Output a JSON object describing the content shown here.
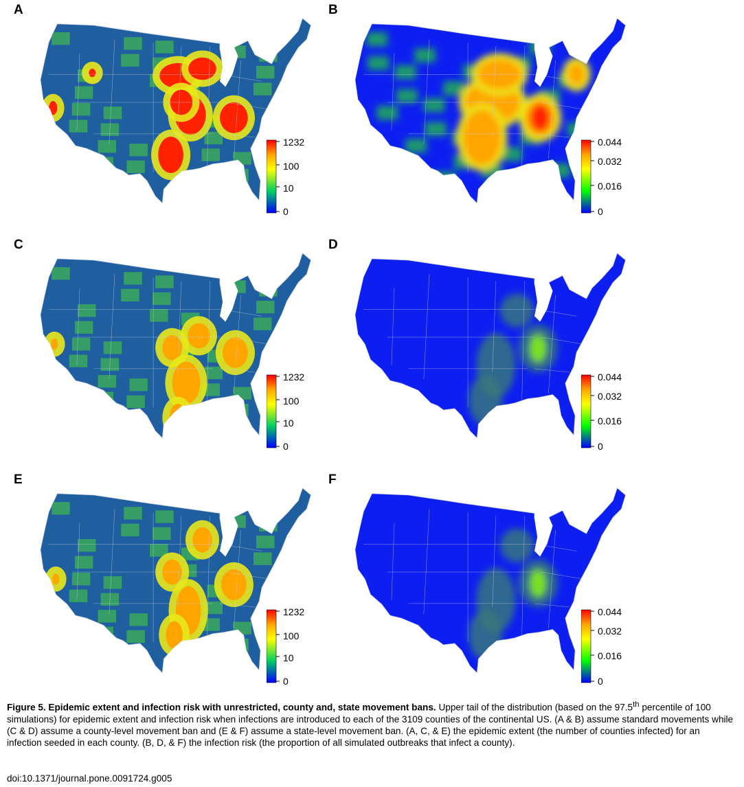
{
  "panels": [
    {
      "label": "A",
      "type": "extent",
      "tint": "unrestricted"
    },
    {
      "label": "B",
      "type": "risk",
      "tint": "unrestricted"
    },
    {
      "label": "C",
      "type": "extent",
      "tint": "county"
    },
    {
      "label": "D",
      "type": "risk",
      "tint": "county"
    },
    {
      "label": "E",
      "type": "extent",
      "tint": "state"
    },
    {
      "label": "F",
      "type": "risk",
      "tint": "state"
    }
  ],
  "extent_scale": {
    "ticks": [
      "1232",
      "100",
      "10",
      "0"
    ]
  },
  "risk_scale": {
    "ticks": [
      "0.044",
      "0.032",
      "0.016",
      "0"
    ]
  },
  "colors": {
    "map_blue": "#1f5fa0",
    "map_green": "#3aa85a",
    "hot_red": "#ff2200",
    "hot_orange": "#ffa500",
    "hot_yellow": "#e8e81a",
    "risk_blue": "#0d1ff0"
  },
  "caption": {
    "title": "Figure 5. Epidemic extent and infection risk with unrestricted, county and, state movement bans.",
    "text_before_sup": " Upper tail of the distribution (based on the 97.5",
    "sup": "th",
    "text_after_sup": " percentile of 100 simulations) for epidemic extent and infection risk when infections are introduced to each of the 3109 counties of the continental US. (A & B) assume standard movements while (C & D) assume a county-level movement ban and (E & F) assume a state-level movement ban. (A, C, & E) the epidemic extent (the number of counties infected) for an infection seeded in each county. (B, D, & F) the infection risk (the proportion of all simulated outbreaks that infect a county).",
    "doi": "doi:10.1371/journal.pone.0091724.g005"
  }
}
